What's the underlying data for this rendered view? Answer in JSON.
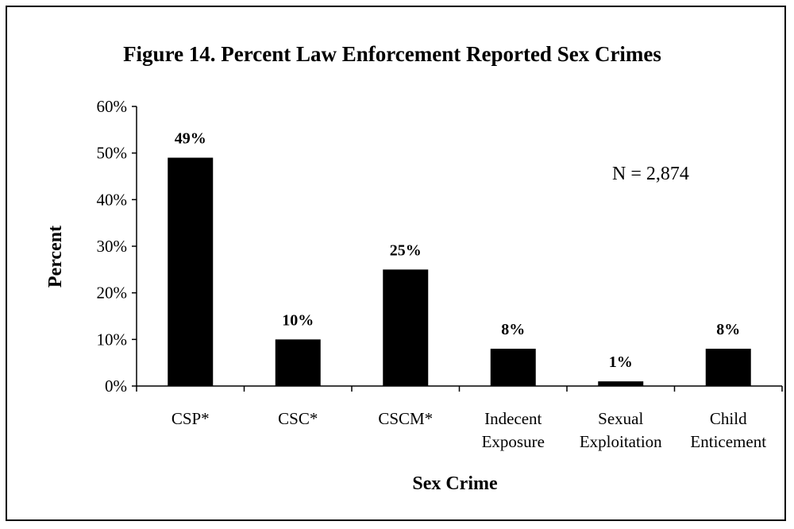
{
  "chart_data": {
    "type": "bar",
    "title": "Figure 14.  Percent Law Enforcement Reported Sex Crimes",
    "xlabel": "Sex Crime",
    "ylabel": "Percent",
    "categories": [
      [
        "CSP*"
      ],
      [
        "CSC*"
      ],
      [
        "CSCM*"
      ],
      [
        "Indecent",
        "Exposure"
      ],
      [
        "Sexual",
        "Exploitation"
      ],
      [
        "Child",
        "Enticement"
      ]
    ],
    "values": [
      49,
      10,
      25,
      8,
      1,
      8
    ],
    "data_labels": [
      "49%",
      "10%",
      "25%",
      "8%",
      "1%",
      "8%"
    ],
    "ylim": [
      0,
      60
    ],
    "yticks": [
      0,
      10,
      20,
      30,
      40,
      50,
      60
    ],
    "ytick_labels": [
      "0%",
      "10%",
      "20%",
      "30%",
      "40%",
      "50%",
      "60%"
    ],
    "annotation": "N = 2,874",
    "bar_color": "#000000",
    "grid": false,
    "legend": "none"
  }
}
